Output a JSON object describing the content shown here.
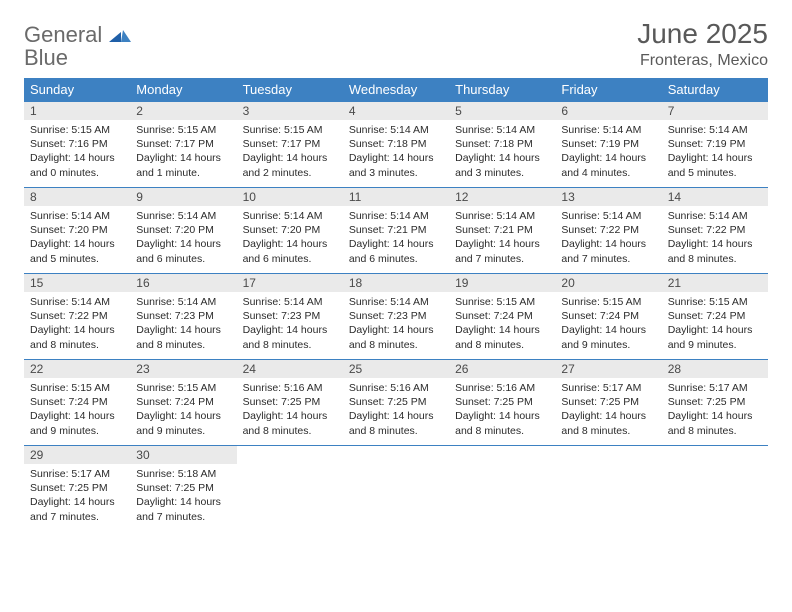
{
  "logo": {
    "text1": "General",
    "text2": "Blue"
  },
  "title": "June 2025",
  "location": "Fronteras, Mexico",
  "colors": {
    "header_bg": "#3d81c2",
    "header_text": "#ffffff",
    "daynum_bg": "#eaeaea",
    "border": "#3d81c2",
    "title_color": "#595959",
    "body_text": "#2b2b2b"
  },
  "typography": {
    "title_fontsize": 28,
    "location_fontsize": 16,
    "dayheader_fontsize": 13,
    "daynum_fontsize": 12,
    "body_fontsize": 10.5
  },
  "day_headers": [
    "Sunday",
    "Monday",
    "Tuesday",
    "Wednesday",
    "Thursday",
    "Friday",
    "Saturday"
  ],
  "weeks": [
    [
      {
        "n": "1",
        "sr": "Sunrise: 5:15 AM",
        "ss": "Sunset: 7:16 PM",
        "d1": "Daylight: 14 hours",
        "d2": "and 0 minutes."
      },
      {
        "n": "2",
        "sr": "Sunrise: 5:15 AM",
        "ss": "Sunset: 7:17 PM",
        "d1": "Daylight: 14 hours",
        "d2": "and 1 minute."
      },
      {
        "n": "3",
        "sr": "Sunrise: 5:15 AM",
        "ss": "Sunset: 7:17 PM",
        "d1": "Daylight: 14 hours",
        "d2": "and 2 minutes."
      },
      {
        "n": "4",
        "sr": "Sunrise: 5:14 AM",
        "ss": "Sunset: 7:18 PM",
        "d1": "Daylight: 14 hours",
        "d2": "and 3 minutes."
      },
      {
        "n": "5",
        "sr": "Sunrise: 5:14 AM",
        "ss": "Sunset: 7:18 PM",
        "d1": "Daylight: 14 hours",
        "d2": "and 3 minutes."
      },
      {
        "n": "6",
        "sr": "Sunrise: 5:14 AM",
        "ss": "Sunset: 7:19 PM",
        "d1": "Daylight: 14 hours",
        "d2": "and 4 minutes."
      },
      {
        "n": "7",
        "sr": "Sunrise: 5:14 AM",
        "ss": "Sunset: 7:19 PM",
        "d1": "Daylight: 14 hours",
        "d2": "and 5 minutes."
      }
    ],
    [
      {
        "n": "8",
        "sr": "Sunrise: 5:14 AM",
        "ss": "Sunset: 7:20 PM",
        "d1": "Daylight: 14 hours",
        "d2": "and 5 minutes."
      },
      {
        "n": "9",
        "sr": "Sunrise: 5:14 AM",
        "ss": "Sunset: 7:20 PM",
        "d1": "Daylight: 14 hours",
        "d2": "and 6 minutes."
      },
      {
        "n": "10",
        "sr": "Sunrise: 5:14 AM",
        "ss": "Sunset: 7:20 PM",
        "d1": "Daylight: 14 hours",
        "d2": "and 6 minutes."
      },
      {
        "n": "11",
        "sr": "Sunrise: 5:14 AM",
        "ss": "Sunset: 7:21 PM",
        "d1": "Daylight: 14 hours",
        "d2": "and 6 minutes."
      },
      {
        "n": "12",
        "sr": "Sunrise: 5:14 AM",
        "ss": "Sunset: 7:21 PM",
        "d1": "Daylight: 14 hours",
        "d2": "and 7 minutes."
      },
      {
        "n": "13",
        "sr": "Sunrise: 5:14 AM",
        "ss": "Sunset: 7:22 PM",
        "d1": "Daylight: 14 hours",
        "d2": "and 7 minutes."
      },
      {
        "n": "14",
        "sr": "Sunrise: 5:14 AM",
        "ss": "Sunset: 7:22 PM",
        "d1": "Daylight: 14 hours",
        "d2": "and 8 minutes."
      }
    ],
    [
      {
        "n": "15",
        "sr": "Sunrise: 5:14 AM",
        "ss": "Sunset: 7:22 PM",
        "d1": "Daylight: 14 hours",
        "d2": "and 8 minutes."
      },
      {
        "n": "16",
        "sr": "Sunrise: 5:14 AM",
        "ss": "Sunset: 7:23 PM",
        "d1": "Daylight: 14 hours",
        "d2": "and 8 minutes."
      },
      {
        "n": "17",
        "sr": "Sunrise: 5:14 AM",
        "ss": "Sunset: 7:23 PM",
        "d1": "Daylight: 14 hours",
        "d2": "and 8 minutes."
      },
      {
        "n": "18",
        "sr": "Sunrise: 5:14 AM",
        "ss": "Sunset: 7:23 PM",
        "d1": "Daylight: 14 hours",
        "d2": "and 8 minutes."
      },
      {
        "n": "19",
        "sr": "Sunrise: 5:15 AM",
        "ss": "Sunset: 7:24 PM",
        "d1": "Daylight: 14 hours",
        "d2": "and 8 minutes."
      },
      {
        "n": "20",
        "sr": "Sunrise: 5:15 AM",
        "ss": "Sunset: 7:24 PM",
        "d1": "Daylight: 14 hours",
        "d2": "and 9 minutes."
      },
      {
        "n": "21",
        "sr": "Sunrise: 5:15 AM",
        "ss": "Sunset: 7:24 PM",
        "d1": "Daylight: 14 hours",
        "d2": "and 9 minutes."
      }
    ],
    [
      {
        "n": "22",
        "sr": "Sunrise: 5:15 AM",
        "ss": "Sunset: 7:24 PM",
        "d1": "Daylight: 14 hours",
        "d2": "and 9 minutes."
      },
      {
        "n": "23",
        "sr": "Sunrise: 5:15 AM",
        "ss": "Sunset: 7:24 PM",
        "d1": "Daylight: 14 hours",
        "d2": "and 9 minutes."
      },
      {
        "n": "24",
        "sr": "Sunrise: 5:16 AM",
        "ss": "Sunset: 7:25 PM",
        "d1": "Daylight: 14 hours",
        "d2": "and 8 minutes."
      },
      {
        "n": "25",
        "sr": "Sunrise: 5:16 AM",
        "ss": "Sunset: 7:25 PM",
        "d1": "Daylight: 14 hours",
        "d2": "and 8 minutes."
      },
      {
        "n": "26",
        "sr": "Sunrise: 5:16 AM",
        "ss": "Sunset: 7:25 PM",
        "d1": "Daylight: 14 hours",
        "d2": "and 8 minutes."
      },
      {
        "n": "27",
        "sr": "Sunrise: 5:17 AM",
        "ss": "Sunset: 7:25 PM",
        "d1": "Daylight: 14 hours",
        "d2": "and 8 minutes."
      },
      {
        "n": "28",
        "sr": "Sunrise: 5:17 AM",
        "ss": "Sunset: 7:25 PM",
        "d1": "Daylight: 14 hours",
        "d2": "and 8 minutes."
      }
    ],
    [
      {
        "n": "29",
        "sr": "Sunrise: 5:17 AM",
        "ss": "Sunset: 7:25 PM",
        "d1": "Daylight: 14 hours",
        "d2": "and 7 minutes."
      },
      {
        "n": "30",
        "sr": "Sunrise: 5:18 AM",
        "ss": "Sunset: 7:25 PM",
        "d1": "Daylight: 14 hours",
        "d2": "and 7 minutes."
      },
      null,
      null,
      null,
      null,
      null
    ]
  ]
}
